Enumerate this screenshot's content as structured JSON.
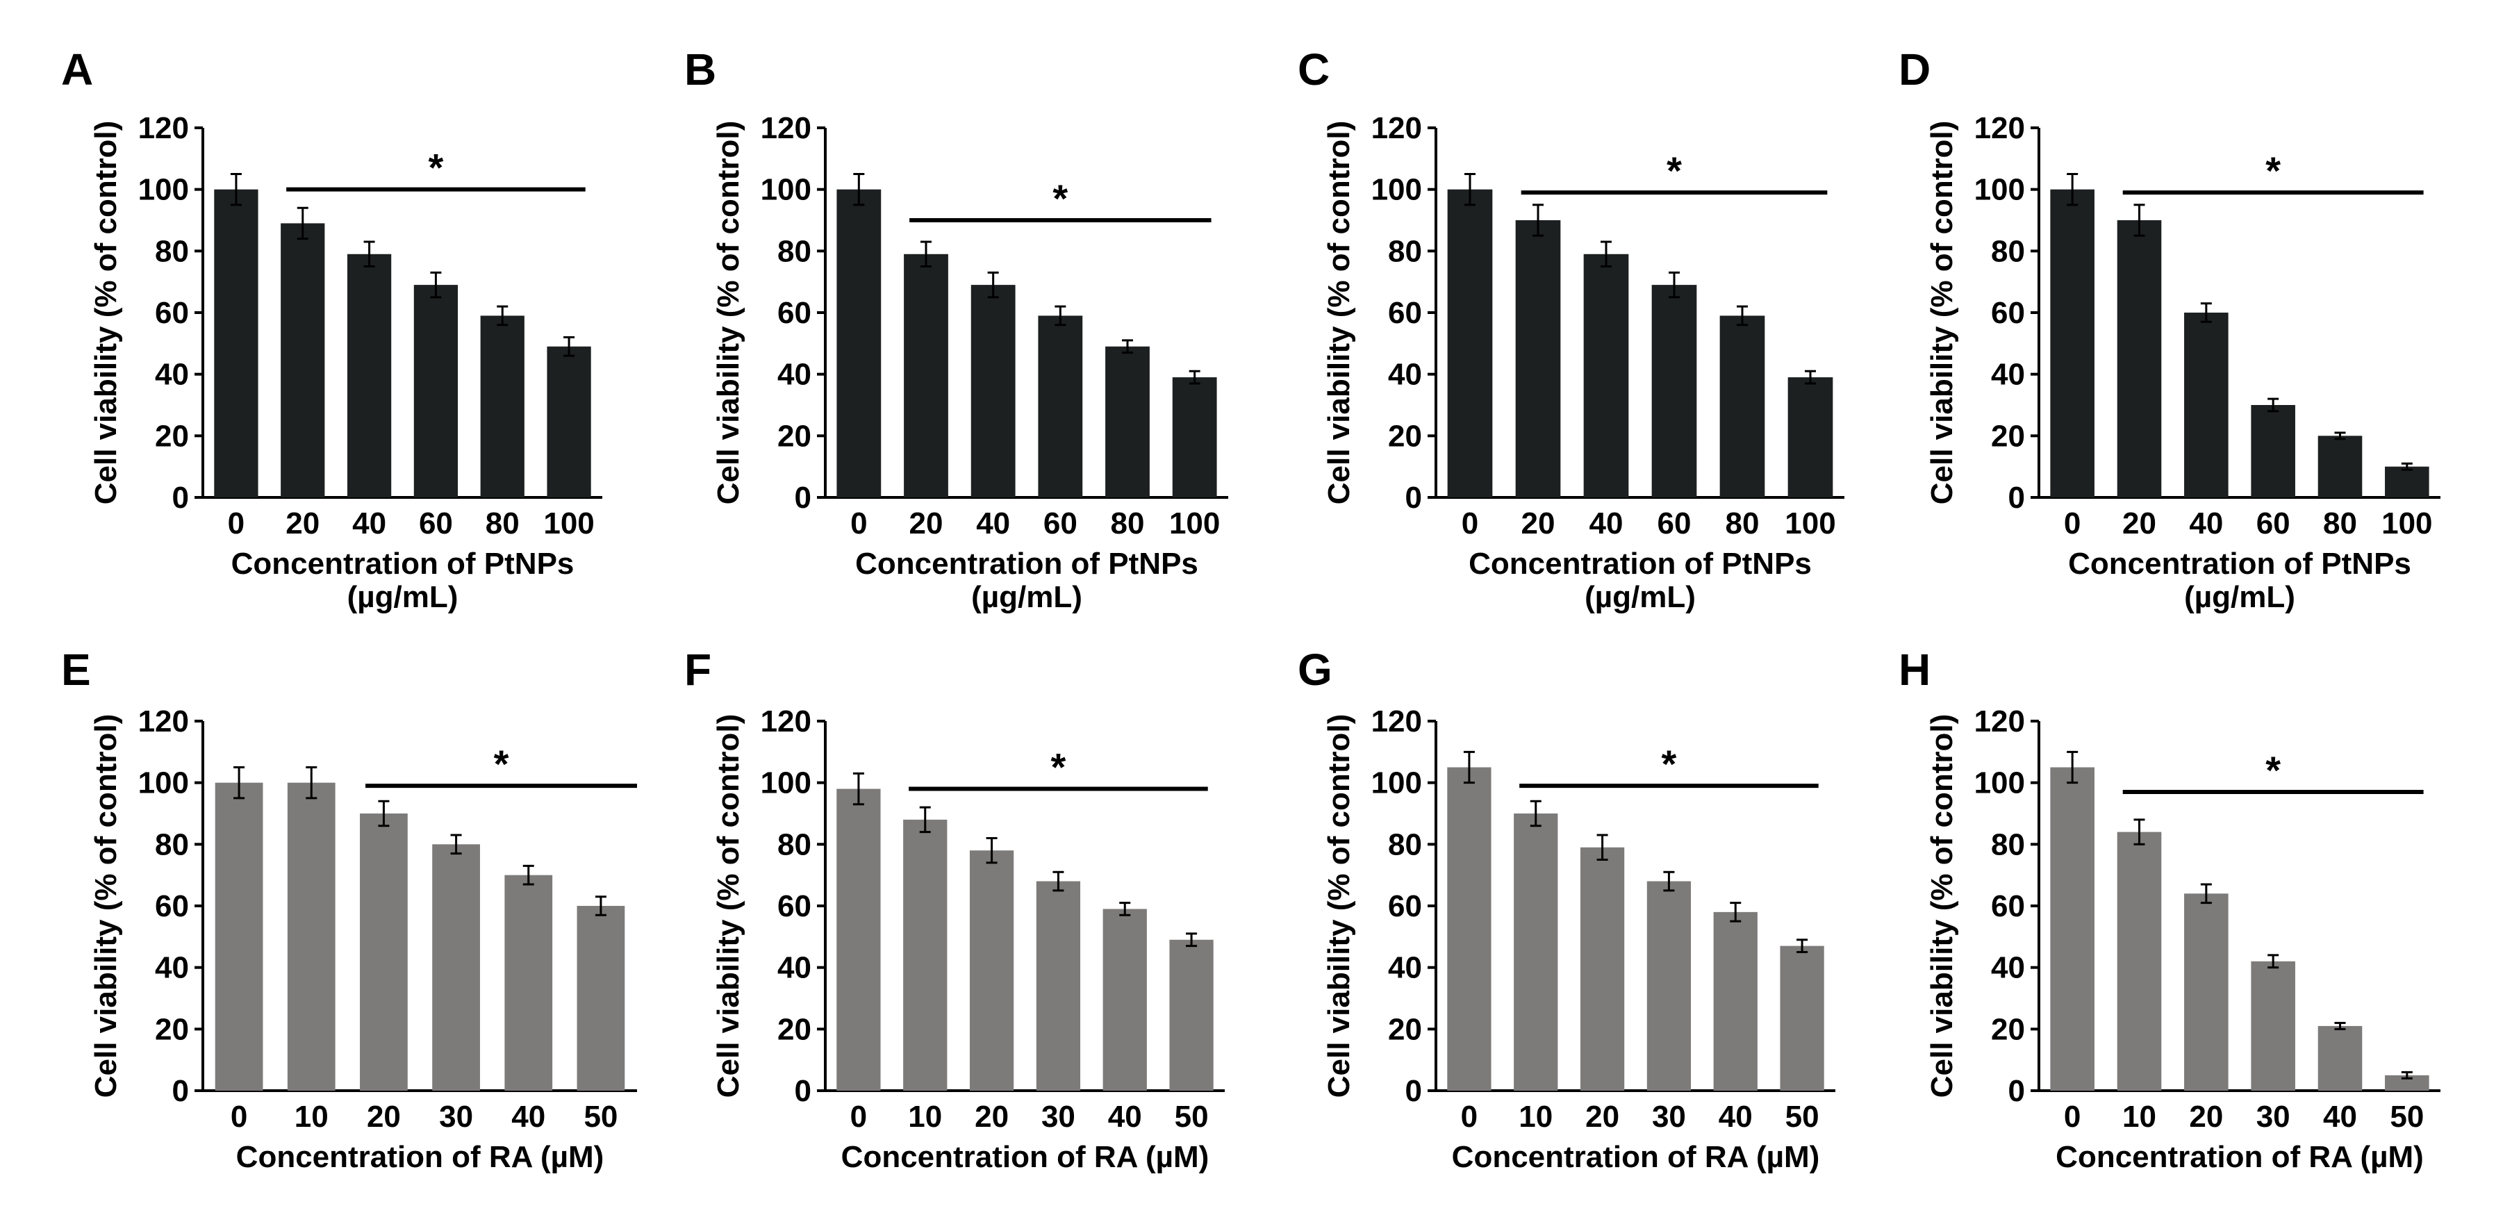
{
  "colors": {
    "bar_dark": "#1c2021",
    "bar_gray": "#7d7a7a",
    "axis": "#000000"
  },
  "chart_data": [
    {
      "panel": "A",
      "type": "bar",
      "color": "bar_dark",
      "categories": [
        "0",
        "20",
        "40",
        "60",
        "80",
        "100"
      ],
      "values": [
        100,
        89,
        79,
        69,
        59,
        49
      ],
      "errors": [
        5,
        5,
        4,
        4,
        3,
        3
      ],
      "ylim": [
        0,
        120
      ],
      "yticks": [
        "0",
        "20",
        "40",
        "60",
        "80",
        "100",
        "120"
      ],
      "ylabel": "Cell viability (% of control)",
      "xlabel": [
        "Concentration of PtNPs",
        "(µg/mL)"
      ],
      "significance": {
        "from": 1,
        "to": 5,
        "y": 100,
        "label": "*"
      }
    },
    {
      "panel": "B",
      "type": "bar",
      "color": "bar_dark",
      "categories": [
        "0",
        "20",
        "40",
        "60",
        "80",
        "100"
      ],
      "values": [
        100,
        79,
        69,
        59,
        49,
        39
      ],
      "errors": [
        5,
        4,
        4,
        3,
        2,
        2
      ],
      "ylim": [
        0,
        120
      ],
      "yticks": [
        "0",
        "20",
        "40",
        "60",
        "80",
        "100",
        "120"
      ],
      "ylabel": "Cell viability (% of control)",
      "xlabel": [
        "Concentration of PtNPs",
        "(µg/mL)"
      ],
      "significance": {
        "from": 1,
        "to": 5,
        "y": 90,
        "label": "*"
      }
    },
    {
      "panel": "C",
      "type": "bar",
      "color": "bar_dark",
      "categories": [
        "0",
        "20",
        "40",
        "60",
        "80",
        "100"
      ],
      "values": [
        100,
        90,
        79,
        69,
        59,
        39
      ],
      "errors": [
        5,
        5,
        4,
        4,
        3,
        2
      ],
      "ylim": [
        0,
        120
      ],
      "yticks": [
        "0",
        "20",
        "40",
        "60",
        "80",
        "100",
        "120"
      ],
      "ylabel": "Cell viability (% of control)",
      "xlabel": [
        "Concentration of PtNPs",
        "(µg/mL)"
      ],
      "significance": {
        "from": 1,
        "to": 5,
        "y": 99,
        "label": "*"
      }
    },
    {
      "panel": "D",
      "type": "bar",
      "color": "bar_dark",
      "categories": [
        "0",
        "20",
        "40",
        "60",
        "80",
        "100"
      ],
      "values": [
        100,
        90,
        60,
        30,
        20,
        10
      ],
      "errors": [
        5,
        5,
        3,
        2,
        1,
        1
      ],
      "ylim": [
        0,
        120
      ],
      "yticks": [
        "0",
        "20",
        "40",
        "60",
        "80",
        "100",
        "120"
      ],
      "ylabel": "Cell viability (% of control)",
      "xlabel": [
        "Concentration of PtNPs",
        "(µg/mL)"
      ],
      "significance": {
        "from": 1,
        "to": 5,
        "y": 99,
        "label": "*"
      }
    },
    {
      "panel": "E",
      "type": "bar",
      "color": "bar_gray",
      "categories": [
        "0",
        "10",
        "20",
        "30",
        "40",
        "50"
      ],
      "values": [
        100,
        100,
        90,
        80,
        70,
        60
      ],
      "errors": [
        5,
        5,
        4,
        3,
        3,
        3
      ],
      "ylim": [
        0,
        120
      ],
      "yticks": [
        "0",
        "20",
        "40",
        "60",
        "80",
        "100",
        "120"
      ],
      "ylabel": "Cell viability (% of control)",
      "xlabel": [
        "Concentration of RA (µM)"
      ],
      "significance": {
        "from": 2,
        "to": 6,
        "y": 99,
        "label": "*"
      }
    },
    {
      "panel": "F",
      "type": "bar",
      "color": "bar_gray",
      "categories": [
        "0",
        "10",
        "20",
        "30",
        "40",
        "50"
      ],
      "values": [
        98,
        88,
        78,
        68,
        59,
        49
      ],
      "errors": [
        5,
        4,
        4,
        3,
        2,
        2
      ],
      "ylim": [
        0,
        120
      ],
      "yticks": [
        "0",
        "20",
        "40",
        "60",
        "80",
        "100",
        "120"
      ],
      "ylabel": "Cell viability (% of control)",
      "xlabel": [
        "Concentration of RA (µM)"
      ],
      "significance": {
        "from": 1,
        "to": 5,
        "y": 98,
        "label": "*"
      }
    },
    {
      "panel": "G",
      "type": "bar",
      "color": "bar_gray",
      "categories": [
        "0",
        "10",
        "20",
        "30",
        "40",
        "50"
      ],
      "values": [
        105,
        90,
        79,
        68,
        58,
        47
      ],
      "errors": [
        5,
        4,
        4,
        3,
        3,
        2
      ],
      "ylim": [
        0,
        120
      ],
      "yticks": [
        "0",
        "20",
        "40",
        "60",
        "80",
        "100",
        "120"
      ],
      "ylabel": "Cell viability (% of control)",
      "xlabel": [
        "Concentration of RA (µM)"
      ],
      "significance": {
        "from": 1,
        "to": 5,
        "y": 99,
        "label": "*"
      }
    },
    {
      "panel": "H",
      "type": "bar",
      "color": "bar_gray",
      "categories": [
        "0",
        "10",
        "20",
        "30",
        "40",
        "50"
      ],
      "values": [
        105,
        84,
        64,
        42,
        21,
        5
      ],
      "errors": [
        5,
        4,
        3,
        2,
        1,
        1
      ],
      "ylim": [
        0,
        120
      ],
      "yticks": [
        "0",
        "20",
        "40",
        "60",
        "80",
        "100",
        "120"
      ],
      "ylabel": "Cell viability (% of control)",
      "xlabel": [
        "Concentration of RA (µM)"
      ],
      "significance": {
        "from": 1,
        "to": 5,
        "y": 97,
        "label": "*"
      }
    }
  ]
}
